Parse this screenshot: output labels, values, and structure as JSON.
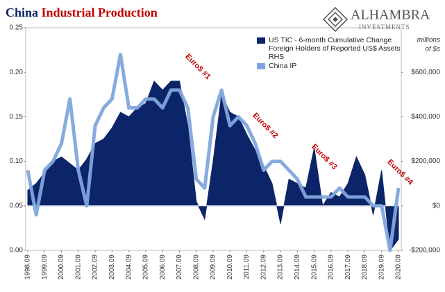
{
  "title": "China",
  "title_highlight": "Industrial Production",
  "logo": {
    "name": "ALHAMBRA",
    "tagline": "INVESTMENTS"
  },
  "chart_data": {
    "type": "area-line",
    "x": [
      "1998.09",
      "1999.03",
      "1999.09",
      "2000.03",
      "2000.09",
      "2001.03",
      "2001.09",
      "2002.03",
      "2002.09",
      "2003.03",
      "2003.09",
      "2004.03",
      "2004.09",
      "2005.03",
      "2005.09",
      "2006.03",
      "2006.09",
      "2007.03",
      "2007.09",
      "2008.03",
      "2008.09",
      "2009.03",
      "2009.09",
      "2010.03",
      "2010.09",
      "2011.03",
      "2011.09",
      "2012.03",
      "2012.09",
      "2013.03",
      "2013.09",
      "2014.03",
      "2014.09",
      "2015.03",
      "2015.09",
      "2016.03",
      "2016.09",
      "2017.03",
      "2017.09",
      "2018.03",
      "2018.09",
      "2019.03",
      "2019.09",
      "2020.03",
      "2020.09"
    ],
    "xticks": [
      "1998.09",
      "1999.09",
      "2000.09",
      "2001.09",
      "2002.09",
      "2003.09",
      "2004.09",
      "2005.09",
      "2006.09",
      "2007.09",
      "2008.09",
      "2009.09",
      "2010.09",
      "2011.09",
      "2012.09",
      "2013.09",
      "2014.09",
      "2015.09",
      "2016.09",
      "2017.09",
      "2018.09",
      "2019.09",
      "2020.09"
    ],
    "ylim": [
      0,
      0.25
    ],
    "yticks": [
      {
        "value": 0,
        "label": "0.00"
      },
      {
        "value": 0.05,
        "label": "0.05"
      },
      {
        "value": 0.1,
        "label": "0.10"
      },
      {
        "value": 0.15,
        "label": "0.15"
      },
      {
        "value": 0.2,
        "label": "0.20"
      },
      {
        "value": 0.25,
        "label": "0.25"
      }
    ],
    "y2lim": [
      -200000,
      800000
    ],
    "y2ticks": [
      {
        "value": -200000,
        "label": "-$200,000"
      },
      {
        "value": 0,
        "label": "$0"
      },
      {
        "value": 200000,
        "label": "$200,000"
      },
      {
        "value": 400000,
        "label": "$400,000"
      },
      {
        "value": 600000,
        "label": "$600,000"
      }
    ],
    "y2label": [
      "millions",
      "of $s"
    ],
    "series": [
      {
        "name": "US TIC - 6-month Cumulative Change Foreign Holders of Reported US$ Assets RHS",
        "color": "#0c2468",
        "axis": "y2",
        "kind": "area",
        "values": [
          70000,
          100000,
          150000,
          200000,
          220000,
          190000,
          160000,
          210000,
          280000,
          300000,
          350000,
          420000,
          400000,
          440000,
          460000,
          560000,
          520000,
          560000,
          560000,
          360000,
          20000,
          -60000,
          200000,
          500000,
          420000,
          400000,
          320000,
          250000,
          180000,
          100000,
          -80000,
          120000,
          100000,
          80000,
          260000,
          0,
          60000,
          40000,
          100000,
          220000,
          140000,
          -40000,
          160000,
          -200000,
          -150000
        ]
      },
      {
        "name": "China IP",
        "color": "#7fa6dc",
        "kind": "line",
        "values": [
          0.09,
          0.04,
          0.09,
          0.1,
          0.12,
          0.17,
          0.09,
          0.05,
          0.14,
          0.16,
          0.17,
          0.22,
          0.16,
          0.16,
          0.17,
          0.17,
          0.16,
          0.18,
          0.18,
          0.16,
          0.08,
          0.07,
          0.15,
          0.18,
          0.14,
          0.15,
          0.14,
          0.12,
          0.09,
          0.1,
          0.1,
          0.09,
          0.08,
          0.06,
          0.06,
          0.06,
          0.06,
          0.07,
          0.06,
          0.06,
          0.06,
          0.05,
          0.05,
          0.0,
          0.07
        ]
      }
    ],
    "annotations": [
      {
        "text": "Euro$ #1",
        "x": "2007.09"
      },
      {
        "text": "Euro$ #2",
        "x": "2011.09"
      },
      {
        "text": "Euro$ #3",
        "x": "2015.03"
      },
      {
        "text": "Euro$ #4",
        "x": "2019.09"
      }
    ]
  }
}
